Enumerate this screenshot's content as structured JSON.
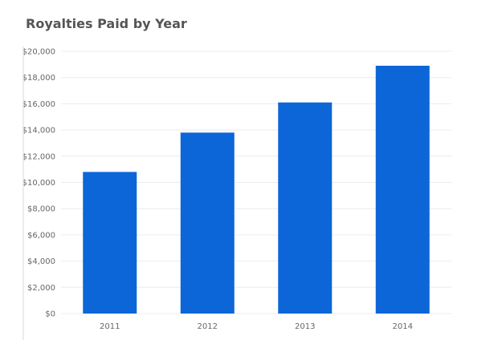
{
  "chart_data": {
    "type": "bar",
    "title": "Royalties Paid by Year",
    "xlabel": "",
    "ylabel": "",
    "categories": [
      "2011",
      "2012",
      "2013",
      "2014"
    ],
    "values": [
      10800,
      13800,
      16100,
      18900
    ],
    "ylim": [
      0,
      20000
    ],
    "y_ticks": [
      0,
      2000,
      4000,
      6000,
      8000,
      10000,
      12000,
      14000,
      16000,
      18000,
      20000
    ],
    "y_tick_labels": [
      "$0",
      "$2,000",
      "$4,000",
      "$6,000",
      "$8,000",
      "$10,000",
      "$12,000",
      "$14,000",
      "$16,000",
      "$18,000",
      "$20,000"
    ],
    "grid": true,
    "legend": "none",
    "bar_color": "#0c66d7"
  }
}
